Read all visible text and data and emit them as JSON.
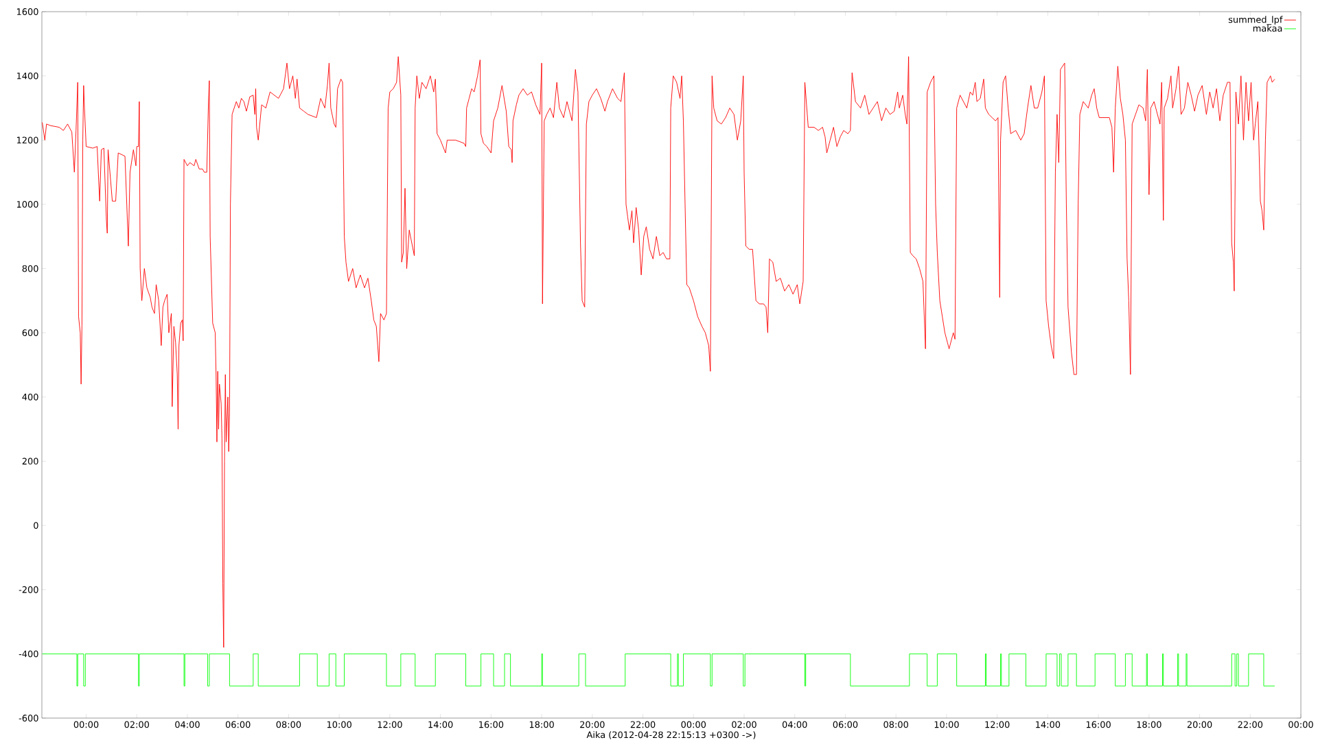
{
  "chart_data": {
    "type": "line",
    "xlabel": "Aika (2012-04-28 22:15:13 +0300 ->)",
    "xlim": [
      "2012-04-28T22:15",
      "2012-05-01T00:00"
    ],
    "ylim": [
      -600,
      1600
    ],
    "xticks": [
      {
        "value": "2012-04-29T00:00",
        "label": "00:00"
      },
      {
        "value": "2012-04-29T02:00",
        "label": "02:00"
      },
      {
        "value": "2012-04-29T04:00",
        "label": "04:00"
      },
      {
        "value": "2012-04-29T06:00",
        "label": "06:00"
      },
      {
        "value": "2012-04-29T08:00",
        "label": "08:00"
      },
      {
        "value": "2012-04-29T10:00",
        "label": "10:00"
      },
      {
        "value": "2012-04-29T12:00",
        "label": "12:00"
      },
      {
        "value": "2012-04-29T14:00",
        "label": "14:00"
      },
      {
        "value": "2012-04-29T16:00",
        "label": "16:00"
      },
      {
        "value": "2012-04-29T18:00",
        "label": "18:00"
      },
      {
        "value": "2012-04-29T20:00",
        "label": "20:00"
      },
      {
        "value": "2012-04-29T22:00",
        "label": "22:00"
      },
      {
        "value": "2012-04-30T00:00",
        "label": "00:00"
      },
      {
        "value": "2012-04-30T02:00",
        "label": "02:00"
      },
      {
        "value": "2012-04-30T04:00",
        "label": "04:00"
      },
      {
        "value": "2012-04-30T06:00",
        "label": "06:00"
      },
      {
        "value": "2012-04-30T08:00",
        "label": "08:00"
      },
      {
        "value": "2012-04-30T10:00",
        "label": "10:00"
      },
      {
        "value": "2012-04-30T12:00",
        "label": "12:00"
      },
      {
        "value": "2012-04-30T14:00",
        "label": "14:00"
      },
      {
        "value": "2012-04-30T16:00",
        "label": "16:00"
      },
      {
        "value": "2012-04-30T18:00",
        "label": "18:00"
      },
      {
        "value": "2012-04-30T20:00",
        "label": "20:00"
      },
      {
        "value": "2012-04-30T22:00",
        "label": "22:00"
      },
      {
        "value": "2012-05-01T00:00",
        "label": "00:00"
      }
    ],
    "yticks": [
      -600,
      -400,
      -200,
      0,
      200,
      400,
      600,
      800,
      1000,
      1200,
      1400,
      1600
    ],
    "legend": "top right",
    "series": [
      {
        "name": "summed_lpf",
        "color": "#ff0000",
        "x": [
          "2012-04-28T22:16",
          "2012-04-28T22:22",
          "2012-04-28T22:26",
          "2012-04-28T22:36",
          "2012-04-28T22:56",
          "2012-04-28T23:06",
          "2012-04-28T23:16",
          "2012-04-28T23:26",
          "2012-04-28T23:32",
          "2012-04-28T23:36",
          "2012-04-28T23:40",
          "2012-04-28T23:42",
          "2012-04-28T23:46",
          "2012-04-28T23:48",
          "2012-04-28T23:50",
          "2012-04-28T23:52",
          "2012-04-28T23:54",
          "2012-04-28T23:56",
          "2012-04-29T00:00",
          "2012-04-29T00:16",
          "2012-04-29T00:26",
          "2012-04-29T00:32",
          "2012-04-29T00:36",
          "2012-04-29T00:42",
          "2012-04-29T00:48",
          "2012-04-29T00:50",
          "2012-04-29T00:52",
          "2012-04-29T01:02",
          "2012-04-29T01:10",
          "2012-04-29T01:16",
          "2012-04-29T01:32",
          "2012-04-29T01:40",
          "2012-04-29T01:44",
          "2012-04-29T01:52",
          "2012-04-29T01:58",
          "2012-04-29T02:00",
          "2012-04-29T02:04",
          "2012-04-29T02:06",
          "2012-04-29T02:08",
          "2012-04-29T02:12",
          "2012-04-29T02:18",
          "2012-04-29T02:24",
          "2012-04-29T02:32",
          "2012-04-29T02:36",
          "2012-04-29T02:42",
          "2012-04-29T02:46",
          "2012-04-29T02:52",
          "2012-04-29T02:58",
          "2012-04-29T03:02",
          "2012-04-29T03:06",
          "2012-04-29T03:12",
          "2012-04-29T03:16",
          "2012-04-29T03:22",
          "2012-04-29T03:24",
          "2012-04-29T03:28",
          "2012-04-29T03:32",
          "2012-04-29T03:36",
          "2012-04-29T03:38",
          "2012-04-29T03:40",
          "2012-04-29T03:44",
          "2012-04-29T03:48",
          "2012-04-29T03:50",
          "2012-04-29T03:52",
          "2012-04-29T04:00",
          "2012-04-29T04:06",
          "2012-04-29T04:16",
          "2012-04-29T04:20",
          "2012-04-29T04:28",
          "2012-04-29T04:36",
          "2012-04-29T04:40",
          "2012-04-29T04:46",
          "2012-04-29T04:50",
          "2012-04-29T04:52",
          "2012-04-29T04:54",
          "2012-04-29T05:00",
          "2012-04-29T05:06",
          "2012-04-29T05:08",
          "2012-04-29T05:10",
          "2012-04-29T05:12",
          "2012-04-29T05:14",
          "2012-04-29T05:16",
          "2012-04-29T05:20",
          "2012-04-29T05:22",
          "2012-04-29T05:24",
          "2012-04-29T05:26",
          "2012-04-29T05:28",
          "2012-04-29T05:30",
          "2012-04-29T05:32",
          "2012-04-29T05:36",
          "2012-04-29T05:38",
          "2012-04-29T05:40",
          "2012-04-29T05:42",
          "2012-04-29T05:46",
          "2012-04-29T05:56",
          "2012-04-29T06:02",
          "2012-04-29T06:08",
          "2012-04-29T06:14",
          "2012-04-29T06:20",
          "2012-04-29T06:28",
          "2012-04-29T06:36",
          "2012-04-29T06:40",
          "2012-04-29T06:42",
          "2012-04-29T06:44",
          "2012-04-29T06:48",
          "2012-04-29T06:56",
          "2012-04-29T07:06",
          "2012-04-29T07:16",
          "2012-04-29T07:36",
          "2012-04-29T07:48",
          "2012-04-29T07:56",
          "2012-04-29T08:02",
          "2012-04-29T08:10",
          "2012-04-29T08:16",
          "2012-04-29T08:20",
          "2012-04-29T08:26",
          "2012-04-29T08:36",
          "2012-04-29T08:46",
          "2012-04-29T08:56",
          "2012-04-29T09:06",
          "2012-04-29T09:16",
          "2012-04-29T09:26",
          "2012-04-29T09:32",
          "2012-04-29T09:36",
          "2012-04-29T09:40",
          "2012-04-29T09:48",
          "2012-04-29T09:52",
          "2012-04-29T09:56",
          "2012-04-29T10:04",
          "2012-04-29T10:08",
          "2012-04-29T10:12",
          "2012-04-29T10:16",
          "2012-04-29T10:22",
          "2012-04-29T10:32",
          "2012-04-29T10:40",
          "2012-04-29T10:50",
          "2012-04-29T11:00",
          "2012-04-29T11:08",
          "2012-04-29T11:16",
          "2012-04-29T11:22",
          "2012-04-29T11:28",
          "2012-04-29T11:34",
          "2012-04-29T11:38",
          "2012-04-29T11:46",
          "2012-04-29T11:52",
          "2012-04-29T11:56",
          "2012-04-29T12:00",
          "2012-04-29T12:08",
          "2012-04-29T12:16",
          "2012-04-29T12:20",
          "2012-04-29T12:26",
          "2012-04-29T12:28",
          "2012-04-29T12:32",
          "2012-04-29T12:36",
          "2012-04-29T12:40",
          "2012-04-29T12:46",
          "2012-04-29T12:52",
          "2012-04-29T12:58",
          "2012-04-29T13:00",
          "2012-04-29T13:04",
          "2012-04-29T13:10",
          "2012-04-29T13:16",
          "2012-04-29T13:26",
          "2012-04-29T13:36",
          "2012-04-29T13:44",
          "2012-04-29T13:48",
          "2012-04-29T13:52",
          "2012-04-29T14:00",
          "2012-04-29T14:12",
          "2012-04-29T14:16",
          "2012-04-29T14:36",
          "2012-04-29T14:56",
          "2012-04-29T15:00",
          "2012-04-29T15:02",
          "2012-04-29T15:08",
          "2012-04-29T15:14",
          "2012-04-29T15:20",
          "2012-04-29T15:28",
          "2012-04-29T15:34",
          "2012-04-29T15:36",
          "2012-04-29T15:42",
          "2012-04-29T15:50",
          "2012-04-29T16:00",
          "2012-04-29T16:06",
          "2012-04-29T16:16",
          "2012-04-29T16:26",
          "2012-04-29T16:36",
          "2012-04-29T16:42",
          "2012-04-29T16:48",
          "2012-04-29T16:50",
          "2012-04-29T16:52",
          "2012-04-29T17:00",
          "2012-04-29T17:06",
          "2012-04-29T17:16",
          "2012-04-29T17:26",
          "2012-04-29T17:36",
          "2012-04-29T17:46",
          "2012-04-29T17:56",
          "2012-04-29T18:00",
          "2012-04-29T18:02",
          "2012-04-29T18:06",
          "2012-04-29T18:12",
          "2012-04-29T18:20",
          "2012-04-29T18:28",
          "2012-04-29T18:36",
          "2012-04-29T18:42",
          "2012-04-29T18:52",
          "2012-04-29T19:00",
          "2012-04-29T19:08",
          "2012-04-29T19:12",
          "2012-04-29T19:20",
          "2012-04-29T19:26",
          "2012-04-29T19:32",
          "2012-04-29T19:36",
          "2012-04-29T19:42",
          "2012-04-29T19:46",
          "2012-04-29T19:52",
          "2012-04-29T20:00",
          "2012-04-29T20:10",
          "2012-04-29T20:20",
          "2012-04-29T20:30",
          "2012-04-29T20:36",
          "2012-04-29T20:48",
          "2012-04-29T21:00",
          "2012-04-29T21:08",
          "2012-04-29T21:16",
          "2012-04-29T21:20",
          "2012-04-29T21:24",
          "2012-04-29T21:28",
          "2012-04-29T21:34",
          "2012-04-29T21:38",
          "2012-04-29T21:44",
          "2012-04-29T21:50",
          "2012-04-29T21:56",
          "2012-04-29T22:02",
          "2012-04-29T22:08",
          "2012-04-29T22:16",
          "2012-04-29T22:24",
          "2012-04-29T22:32",
          "2012-04-29T22:40",
          "2012-04-29T22:48",
          "2012-04-29T22:56",
          "2012-04-29T23:04",
          "2012-04-29T23:06",
          "2012-04-29T23:12",
          "2012-04-29T23:20",
          "2012-04-29T23:28",
          "2012-04-29T23:32",
          "2012-04-29T23:36",
          "2012-04-29T23:40",
          "2012-04-29T23:44",
          "2012-04-29T23:50",
          "2012-04-30T00:00",
          "2012-04-30T00:10",
          "2012-04-30T00:20",
          "2012-04-30T00:28",
          "2012-04-30T00:36",
          "2012-04-30T00:40",
          "2012-04-30T00:44",
          "2012-04-30T00:48",
          "2012-04-30T00:56",
          "2012-04-30T01:06",
          "2012-04-30T01:16",
          "2012-04-30T01:26",
          "2012-04-30T01:36",
          "2012-04-30T01:44",
          "2012-04-30T01:52",
          "2012-04-30T01:58",
          "2012-04-30T02:00",
          "2012-04-30T02:04",
          "2012-04-30T02:12",
          "2012-04-30T02:20",
          "2012-04-30T02:28",
          "2012-04-30T02:36",
          "2012-04-30T02:46",
          "2012-04-30T02:52",
          "2012-04-30T02:56",
          "2012-04-30T03:00",
          "2012-04-30T03:08",
          "2012-04-30T03:16",
          "2012-04-30T03:26",
          "2012-04-30T03:36",
          "2012-04-30T03:46",
          "2012-04-30T03:56",
          "2012-04-30T04:06",
          "2012-04-30T04:12",
          "2012-04-30T04:20",
          "2012-04-30T04:24",
          "2012-04-30T04:32",
          "2012-04-30T04:46",
          "2012-04-30T04:56",
          "2012-04-30T05:06",
          "2012-04-30T05:12",
          "2012-04-30T05:16",
          "2012-04-30T05:24",
          "2012-04-30T05:32",
          "2012-04-30T05:40",
          "2012-04-30T05:48",
          "2012-04-30T05:56",
          "2012-04-30T06:06",
          "2012-04-30T06:12",
          "2012-04-30T06:16",
          "2012-04-30T06:24",
          "2012-04-30T06:36",
          "2012-04-30T06:46",
          "2012-04-30T06:56",
          "2012-04-30T07:06",
          "2012-04-30T07:16",
          "2012-04-30T07:26",
          "2012-04-30T07:36",
          "2012-04-30T07:46",
          "2012-04-30T07:56",
          "2012-04-30T08:04",
          "2012-04-30T08:08",
          "2012-04-30T08:16",
          "2012-04-30T08:22",
          "2012-04-30T08:26",
          "2012-04-30T08:30",
          "2012-04-30T08:34",
          "2012-04-30T08:40",
          "2012-04-30T08:48",
          "2012-04-30T08:56",
          "2012-04-30T09:04",
          "2012-04-30T09:10",
          "2012-04-30T09:14",
          "2012-04-30T09:22",
          "2012-04-30T09:30",
          "2012-04-30T09:34",
          "2012-04-30T09:38",
          "2012-04-30T09:44",
          "2012-04-30T09:50",
          "2012-04-30T09:56",
          "2012-04-30T10:02",
          "2012-04-30T10:06",
          "2012-04-30T10:16",
          "2012-04-30T10:20",
          "2012-04-30T10:24",
          "2012-04-30T10:32",
          "2012-04-30T10:40",
          "2012-04-30T10:48",
          "2012-04-30T10:56",
          "2012-04-30T11:02",
          "2012-04-30T11:08",
          "2012-04-30T11:12",
          "2012-04-30T11:20",
          "2012-04-30T11:28",
          "2012-04-30T11:32",
          "2012-04-30T11:40",
          "2012-04-30T11:48",
          "2012-04-30T11:56",
          "2012-04-30T12:02",
          "2012-04-30T12:06",
          "2012-04-30T12:08",
          "2012-04-30T12:14",
          "2012-04-30T12:20",
          "2012-04-30T12:26",
          "2012-04-30T12:32",
          "2012-04-30T12:44",
          "2012-04-30T12:56",
          "2012-04-30T13:04",
          "2012-04-30T13:12",
          "2012-04-30T13:20",
          "2012-04-30T13:28",
          "2012-04-30T13:36",
          "2012-04-30T13:46",
          "2012-04-30T13:52",
          "2012-04-30T13:56",
          "2012-04-30T14:02",
          "2012-04-30T14:08",
          "2012-04-30T14:14",
          "2012-04-30T14:18",
          "2012-04-30T14:22",
          "2012-04-30T14:26",
          "2012-04-30T14:30",
          "2012-04-30T14:40",
          "2012-04-30T14:44",
          "2012-04-30T14:48",
          "2012-04-30T14:56",
          "2012-04-30T15:02",
          "2012-04-30T15:08",
          "2012-04-30T15:12",
          "2012-04-30T15:16",
          "2012-04-30T15:24",
          "2012-04-30T15:36",
          "2012-04-30T15:44",
          "2012-04-30T15:50",
          "2012-04-30T15:56",
          "2012-04-30T16:02",
          "2012-04-30T16:16",
          "2012-04-30T16:26",
          "2012-04-30T16:32",
          "2012-04-30T16:36",
          "2012-04-30T16:40",
          "2012-04-30T16:46",
          "2012-04-30T16:52",
          "2012-04-30T16:58",
          "2012-04-30T17:04",
          "2012-04-30T17:08",
          "2012-04-30T17:12",
          "2012-04-30T17:16",
          "2012-04-30T17:20",
          "2012-04-30T17:28",
          "2012-04-30T17:36",
          "2012-04-30T17:46",
          "2012-04-30T17:52",
          "2012-04-30T17:56",
          "2012-04-30T18:00",
          "2012-04-30T18:04",
          "2012-04-30T18:12",
          "2012-04-30T18:20",
          "2012-04-30T18:26",
          "2012-04-30T18:30",
          "2012-04-30T18:34",
          "2012-04-30T18:36",
          "2012-04-30T18:44",
          "2012-04-30T18:52",
          "2012-04-30T18:56",
          "2012-04-30T19:04",
          "2012-04-30T19:10",
          "2012-04-30T19:16",
          "2012-04-30T19:24",
          "2012-04-30T19:32",
          "2012-04-30T19:40",
          "2012-04-30T19:48",
          "2012-04-30T19:56",
          "2012-04-30T20:06",
          "2012-04-30T20:16",
          "2012-04-30T20:24",
          "2012-04-30T20:32",
          "2012-04-30T20:40",
          "2012-04-30T20:48",
          "2012-04-30T20:56",
          "2012-04-30T21:06",
          "2012-04-30T21:12",
          "2012-04-30T21:16",
          "2012-04-30T21:20",
          "2012-04-30T21:22",
          "2012-04-30T21:26",
          "2012-04-30T21:32",
          "2012-04-30T21:38",
          "2012-04-30T21:44",
          "2012-04-30T21:50",
          "2012-04-30T21:56",
          "2012-04-30T22:02",
          "2012-04-30T22:08",
          "2012-04-30T22:12",
          "2012-04-30T22:18",
          "2012-04-30T22:24",
          "2012-04-30T22:28",
          "2012-04-30T22:32",
          "2012-04-30T22:36",
          "2012-04-30T22:40",
          "2012-04-30T22:48",
          "2012-04-30T22:52",
          "2012-04-30T22:58"
        ],
        "values": [
          1255,
          1200,
          1250,
          1245,
          1240,
          1230,
          1250,
          1225,
          1100,
          1230,
          1380,
          650,
          600,
          440,
          620,
          1200,
          1370,
          1300,
          1180,
          1175,
          1180,
          1010,
          1170,
          1175,
          950,
          910,
          1170,
          1010,
          1010,
          1160,
          1150,
          870,
          1100,
          1170,
          1120,
          1180,
          1180,
          1320,
          800,
          700,
          800,
          740,
          710,
          680,
          660,
          750,
          700,
          560,
          680,
          700,
          720,
          600,
          660,
          370,
          620,
          570,
          470,
          300,
          560,
          630,
          640,
          575,
          1140,
          1120,
          1130,
          1120,
          1140,
          1110,
          1110,
          1100,
          1100,
          1320,
          1385,
          900,
          630,
          600,
          470,
          260,
          480,
          300,
          440,
          380,
          270,
          -180,
          -380,
          200,
          470,
          260,
          400,
          230,
          350,
          1000,
          1280,
          1320,
          1300,
          1330,
          1320,
          1290,
          1335,
          1340,
          1280,
          1360,
          1240,
          1200,
          1310,
          1300,
          1350,
          1330,
          1360,
          1440,
          1360,
          1400,
          1330,
          1390,
          1300,
          1290,
          1280,
          1275,
          1270,
          1330,
          1300,
          1370,
          1440,
          1300,
          1250,
          1240,
          1360,
          1390,
          1380,
          900,
          820,
          760,
          800,
          740,
          780,
          740,
          770,
          700,
          640,
          620,
          510,
          660,
          640,
          660,
          1300,
          1350,
          1360,
          1380,
          1460,
          1340,
          820,
          850,
          1050,
          800,
          920,
          880,
          840,
          1300,
          1400,
          1330,
          1380,
          1360,
          1400,
          1350,
          1390,
          1220,
          1200,
          1160,
          1200,
          1200,
          1190,
          1180,
          1300,
          1330,
          1360,
          1350,
          1400,
          1450,
          1220,
          1190,
          1180,
          1160,
          1260,
          1300,
          1370,
          1290,
          1180,
          1170,
          1130,
          1260,
          1310,
          1340,
          1360,
          1340,
          1350,
          1310,
          1280,
          1440,
          690,
          1260,
          1280,
          1300,
          1270,
          1380,
          1300,
          1270,
          1320,
          1280,
          1260,
          1420,
          1350,
          880,
          700,
          680,
          1250,
          1320,
          1340,
          1360,
          1330,
          1290,
          1320,
          1360,
          1330,
          1320,
          1410,
          1000,
          960,
          920,
          980,
          880,
          990,
          920,
          780,
          900,
          930,
          860,
          830,
          900,
          840,
          850,
          830,
          830,
          1300,
          1400,
          1380,
          1330,
          1400,
          1260,
          1000,
          750,
          740,
          700,
          650,
          620,
          600,
          560,
          480,
          1400,
          1300,
          1260,
          1250,
          1270,
          1300,
          1280,
          1200,
          1260,
          1400,
          1100,
          870,
          860,
          860,
          700,
          690,
          690,
          680,
          600,
          830,
          820,
          760,
          770,
          730,
          750,
          720,
          750,
          690,
          760,
          1380,
          1240,
          1240,
          1230,
          1240,
          1210,
          1160,
          1200,
          1240,
          1180,
          1210,
          1230,
          1220,
          1230,
          1410,
          1320,
          1300,
          1340,
          1280,
          1300,
          1320,
          1260,
          1300,
          1280,
          1290,
          1350,
          1300,
          1340,
          1280,
          1250,
          1460,
          850,
          840,
          830,
          800,
          760,
          550,
          1350,
          1380,
          1400,
          1000,
          850,
          700,
          650,
          600,
          570,
          550,
          600,
          580,
          1300,
          1340,
          1320,
          1300,
          1350,
          1340,
          1380,
          1320,
          1330,
          1390,
          1300,
          1280,
          1270,
          1260,
          1270,
          710,
          1200,
          1380,
          1400,
          1300,
          1220,
          1230,
          1200,
          1220,
          1300,
          1370,
          1300,
          1300,
          1350,
          1400,
          700,
          620,
          560,
          520,
          1100,
          1280,
          1130,
          1420,
          1440,
          1000,
          680,
          540,
          470,
          470,
          1000,
          1280,
          1320,
          1300,
          1340,
          1360,
          1300,
          1270,
          1270,
          1270,
          1240,
          1100,
          1300,
          1430,
          1330,
          1280,
          1200,
          830,
          700,
          470,
          1250,
          1280,
          1310,
          1300,
          1260,
          1420,
          1030,
          1300,
          1320,
          1280,
          1250,
          1380,
          950,
          1300,
          1330,
          1400,
          1300,
          1360,
          1430,
          1280,
          1300,
          1380,
          1340,
          1290,
          1340,
          1370,
          1280,
          1350,
          1300,
          1360,
          1260,
          1340,
          1380,
          1380,
          880,
          820,
          730,
          1350,
          1250,
          1400,
          1200,
          1380,
          1260,
          1380,
          1200,
          1250,
          1320,
          1010,
          980,
          920,
          1200,
          1380,
          1400,
          1380,
          1390
        ]
      },
      {
        "name": "makaa",
        "type": "step",
        "color": "#00ff00",
        "x": [
          "2012-04-28T22:16",
          "2012-04-28T23:38",
          "2012-04-28T23:40",
          "2012-04-28T23:54",
          "2012-04-28T23:58",
          "2012-04-29T02:04",
          "2012-04-29T02:06",
          "2012-04-29T03:52",
          "2012-04-29T03:54",
          "2012-04-29T04:48",
          "2012-04-29T04:52",
          "2012-04-29T05:40",
          "2012-04-29T06:36",
          "2012-04-29T06:48",
          "2012-04-29T08:26",
          "2012-04-29T09:08",
          "2012-04-29T09:36",
          "2012-04-29T09:52",
          "2012-04-29T10:12",
          "2012-04-29T11:52",
          "2012-04-29T12:26",
          "2012-04-29T13:00",
          "2012-04-29T13:48",
          "2012-04-29T15:00",
          "2012-04-29T15:36",
          "2012-04-29T16:06",
          "2012-04-29T16:32",
          "2012-04-29T16:46",
          "2012-04-29T18:00",
          "2012-04-29T18:02",
          "2012-04-29T19:28",
          "2012-04-29T19:44",
          "2012-04-29T21:18",
          "2012-04-29T23:06",
          "2012-04-29T23:22",
          "2012-04-29T23:24",
          "2012-04-29T23:36",
          "2012-04-30T00:40",
          "2012-04-30T00:44",
          "2012-04-30T01:58",
          "2012-04-30T02:02",
          "2012-04-30T04:24",
          "2012-04-30T04:26",
          "2012-04-30T06:12",
          "2012-04-30T08:32",
          "2012-04-30T09:14",
          "2012-04-30T09:38",
          "2012-04-30T10:24",
          "2012-04-30T11:32",
          "2012-04-30T11:34",
          "2012-04-30T12:08",
          "2012-04-30T12:10",
          "2012-04-30T12:28",
          "2012-04-30T13:08",
          "2012-04-30T13:56",
          "2012-04-30T14:22",
          "2012-04-30T14:28",
          "2012-04-30T14:32",
          "2012-04-30T14:48",
          "2012-04-30T15:08",
          "2012-04-30T15:52",
          "2012-04-30T16:40",
          "2012-04-30T17:04",
          "2012-04-30T17:20",
          "2012-04-30T17:54",
          "2012-04-30T17:56",
          "2012-04-30T18:32",
          "2012-04-30T18:34",
          "2012-04-30T19:08",
          "2012-04-30T19:10",
          "2012-04-30T19:28",
          "2012-04-30T19:30",
          "2012-04-30T21:16",
          "2012-04-30T21:24",
          "2012-04-30T21:28",
          "2012-04-30T21:32",
          "2012-04-30T21:56",
          "2012-04-30T22:32",
          "2012-04-30T22:58"
        ],
        "values": [
          -400,
          -500,
          -400,
          -500,
          -400,
          -500,
          -400,
          -500,
          -400,
          -500,
          -400,
          -500,
          -400,
          -500,
          -400,
          -500,
          -400,
          -500,
          -400,
          -500,
          -400,
          -500,
          -400,
          -500,
          -400,
          -500,
          -400,
          -500,
          -400,
          -500,
          -400,
          -500,
          -400,
          -500,
          -400,
          -500,
          -400,
          -500,
          -400,
          -500,
          -400,
          -500,
          -400,
          -500,
          -400,
          -500,
          -400,
          -500,
          -400,
          -500,
          -400,
          -500,
          -400,
          -500,
          -400,
          -500,
          -400,
          -500,
          -400,
          -500,
          -400,
          -500,
          -400,
          -500,
          -400,
          -500,
          -400,
          -500,
          -400,
          -500,
          -400,
          -500,
          -400,
          -500,
          -400,
          -500,
          -400,
          -500,
          -500
        ]
      }
    ]
  }
}
